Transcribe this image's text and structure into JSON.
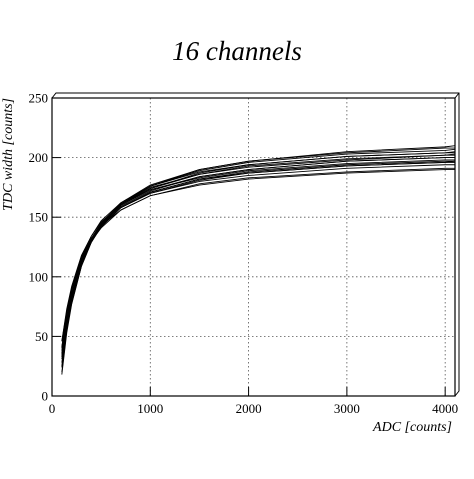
{
  "chart_data": {
    "type": "line",
    "title": "16 channels",
    "x_label": "ADC [counts]",
    "y_label": "TDC width [counts]",
    "xlim": [
      0,
      4100
    ],
    "ylim": [
      0,
      250
    ],
    "xticks": [
      0,
      1000,
      2000,
      3000,
      4000
    ],
    "yticks": [
      0,
      50,
      100,
      150,
      200,
      250
    ],
    "grid": true,
    "x": [
      100,
      150,
      200,
      300,
      400,
      500,
      700,
      1000,
      1500,
      2000,
      3000,
      4000,
      4100
    ],
    "series": [
      {
        "color": "#000000",
        "values": [
          35,
          65,
          86,
          115,
          132,
          144,
          160,
          173,
          184,
          190,
          197,
          200,
          200
        ]
      },
      {
        "color": "#000000",
        "values": [
          41,
          69,
          90,
          117,
          134,
          147,
          162,
          176,
          188,
          194,
          201,
          204,
          204
        ]
      },
      {
        "color": "#000000",
        "values": [
          28,
          61,
          83,
          112,
          130,
          142,
          158,
          170,
          181,
          187,
          193,
          196,
          196
        ]
      },
      {
        "color": "#000000",
        "values": [
          36,
          64,
          85,
          113,
          132,
          145,
          162,
          177,
          190,
          197,
          204,
          208,
          208
        ]
      },
      {
        "color": "#000000",
        "values": [
          33,
          64,
          86,
          113,
          130,
          141,
          156,
          168,
          178,
          183,
          188,
          191,
          191
        ]
      },
      {
        "color": "#000000",
        "values": [
          24,
          58,
          82,
          112,
          131,
          144,
          161,
          174,
          186,
          192,
          198,
          202,
          202
        ]
      },
      {
        "color": "#000000",
        "values": [
          46,
          73,
          92,
          118,
          134,
          146,
          160,
          173,
          183,
          189,
          195,
          198,
          198
        ]
      },
      {
        "color": "#000000",
        "values": [
          18,
          53,
          77,
          109,
          129,
          143,
          161,
          176,
          189,
          196,
          203,
          206,
          207
        ]
      },
      {
        "color": "#000000",
        "values": [
          40,
          69,
          89,
          116,
          132,
          143,
          158,
          170,
          180,
          185,
          191,
          194,
          194
        ]
      },
      {
        "color": "#000000",
        "values": [
          31,
          62,
          85,
          114,
          132,
          145,
          161,
          175,
          186,
          193,
          199,
          202,
          203
        ]
      },
      {
        "color": "#000000",
        "values": [
          41,
          69,
          89,
          115,
          132,
          143,
          158,
          171,
          182,
          188,
          194,
          197,
          197
        ]
      },
      {
        "color": "#000000",
        "values": [
          25,
          56,
          78,
          109,
          129,
          142,
          161,
          176,
          190,
          197,
          205,
          209,
          210
        ]
      },
      {
        "color": "#000000",
        "values": [
          38,
          69,
          89,
          116,
          132,
          143,
          156,
          168,
          177,
          182,
          187,
          190,
          190
        ]
      },
      {
        "color": "#000000",
        "values": [
          46,
          71,
          90,
          115,
          132,
          144,
          159,
          172,
          184,
          190,
          197,
          200,
          200
        ]
      },
      {
        "color": "#000000",
        "values": [
          20,
          55,
          80,
          111,
          129,
          142,
          158,
          171,
          182,
          187,
          193,
          196,
          197
        ]
      },
      {
        "color": "#000000",
        "values": [
          33,
          62,
          83,
          111,
          130,
          143,
          160,
          174,
          187,
          194,
          201,
          204,
          205
        ]
      }
    ]
  }
}
